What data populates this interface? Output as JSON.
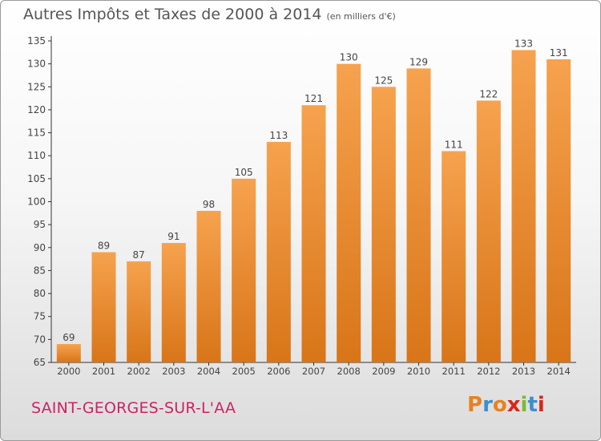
{
  "header": {
    "title": "Autres Impôts et Taxes de 2000 à 2014",
    "unit": "(en milliers d'€)"
  },
  "footer": {
    "city": "SAINT-GEORGES-SUR-L'AA",
    "logo": "Proxiti"
  },
  "colors": {
    "bar_light": "#f6a24e",
    "bar_dark": "#d87518",
    "axis": "#333333",
    "text": "#444444"
  },
  "chart_data": {
    "type": "bar",
    "title": "Autres Impôts et Taxes de 2000 à 2014",
    "subtitle": "(en milliers d'€)",
    "categories": [
      "2000",
      "2001",
      "2002",
      "2003",
      "2004",
      "2005",
      "2006",
      "2007",
      "2008",
      "2009",
      "2010",
      "2011",
      "2012",
      "2013",
      "2014"
    ],
    "values": [
      69,
      89,
      87,
      91,
      98,
      105,
      113,
      121,
      130,
      125,
      129,
      111,
      122,
      133,
      131
    ],
    "ylim": [
      65,
      135
    ],
    "yticks": [
      65,
      70,
      75,
      80,
      85,
      90,
      95,
      100,
      105,
      110,
      115,
      120,
      125,
      130,
      135
    ],
    "grid": false
  }
}
